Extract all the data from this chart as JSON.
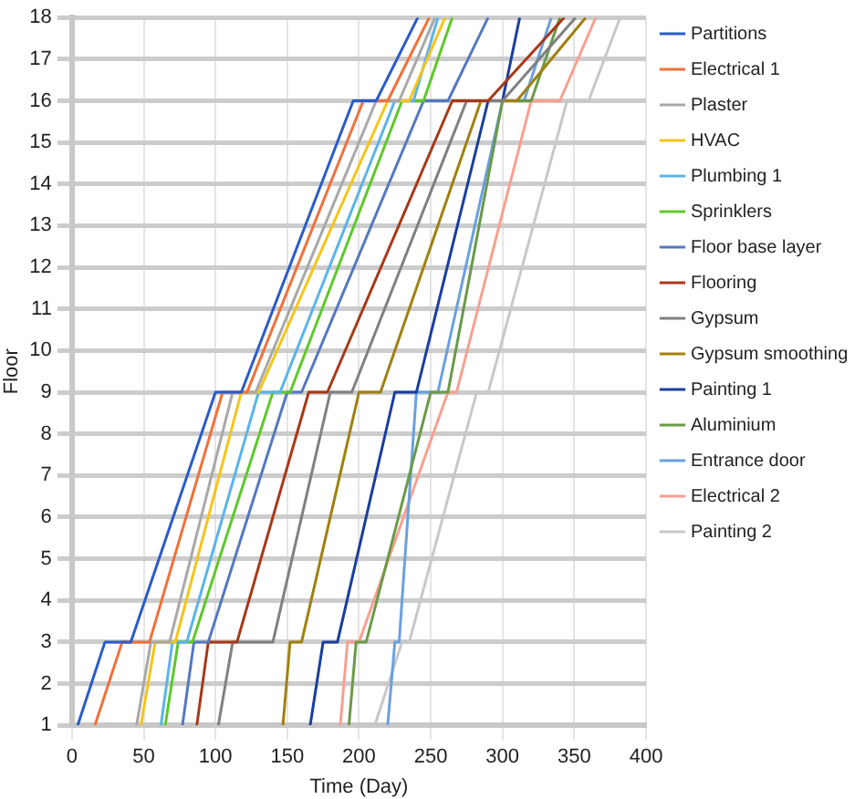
{
  "chart_data": {
    "type": "line",
    "xlabel": "Time (Day)",
    "ylabel": "Floor",
    "xlim": [
      0,
      400
    ],
    "xticks": [
      0,
      50,
      100,
      150,
      200,
      250,
      300,
      350,
      400
    ],
    "ylim": [
      1,
      18
    ],
    "yticks": [
      1,
      2,
      3,
      4,
      5,
      6,
      7,
      8,
      9,
      10,
      11,
      12,
      13,
      14,
      15,
      16,
      17,
      18
    ],
    "grid": true,
    "legend": "right",
    "marker": "none",
    "line_style": "solid",
    "series": [
      {
        "name": "Partitions",
        "color": "#2a5cc8",
        "x": [
          4,
          23,
          41,
          100,
          118,
          196,
          212,
          241
        ],
        "values": [
          1,
          3,
          3,
          9,
          9,
          16,
          16,
          18
        ]
      },
      {
        "name": "Electrical 1",
        "color": "#f0703a",
        "x": [
          16,
          35,
          54,
          105,
          122,
          203,
          220,
          249
        ],
        "values": [
          1,
          3,
          3,
          9,
          9,
          16,
          16,
          18
        ]
      },
      {
        "name": "Plaster",
        "color": "#a8a8a8",
        "x": [
          45,
          55,
          68,
          112,
          128,
          212,
          228,
          253
        ],
        "values": [
          1,
          3,
          3,
          9,
          9,
          16,
          16,
          18
        ]
      },
      {
        "name": "HVAC",
        "color": "#f5c518",
        "x": [
          48,
          58,
          72,
          118,
          130,
          220,
          235,
          260
        ],
        "values": [
          1,
          3,
          3,
          9,
          9,
          16,
          16,
          18
        ]
      },
      {
        "name": "Plumbing 1",
        "color": "#5bb4e8",
        "x": [
          62,
          70,
          80,
          130,
          145,
          225,
          238,
          255
        ],
        "values": [
          1,
          3,
          3,
          9,
          9,
          16,
          16,
          18
        ]
      },
      {
        "name": "Sprinklers",
        "color": "#5ec82a",
        "x": [
          65,
          74,
          84,
          140,
          152,
          230,
          245,
          265
        ],
        "values": [
          1,
          3,
          3,
          9,
          9,
          16,
          16,
          18
        ]
      },
      {
        "name": "Floor base layer",
        "color": "#5578c0",
        "x": [
          77,
          85,
          95,
          150,
          160,
          245,
          262,
          290
        ],
        "values": [
          1,
          3,
          3,
          9,
          9,
          16,
          16,
          18
        ]
      },
      {
        "name": "Flooring",
        "color": "#a83818",
        "x": [
          87,
          95,
          115,
          165,
          178,
          265,
          290,
          343
        ],
        "values": [
          1,
          3,
          3,
          9,
          9,
          16,
          16,
          18
        ]
      },
      {
        "name": "Gypsum",
        "color": "#808080",
        "x": [
          102,
          112,
          140,
          180,
          195,
          275,
          300,
          351
        ],
        "values": [
          1,
          3,
          3,
          9,
          9,
          16,
          16,
          18
        ]
      },
      {
        "name": "Gypsum smoothing",
        "color": "#a08010",
        "x": [
          147,
          152,
          160,
          200,
          215,
          285,
          310,
          358
        ],
        "values": [
          1,
          3,
          3,
          9,
          9,
          16,
          16,
          18
        ]
      },
      {
        "name": "Painting 1",
        "color": "#1a3e9e",
        "x": [
          166,
          175,
          185,
          225,
          240,
          290,
          300,
          312
        ],
        "values": [
          1,
          3,
          3,
          9,
          9,
          16,
          16,
          18
        ]
      },
      {
        "name": "Aluminium",
        "color": "#6a9a48",
        "x": [
          193,
          198,
          205,
          250,
          262,
          300,
          320,
          340
        ],
        "values": [
          1,
          3,
          3,
          9,
          9,
          16,
          16,
          18
        ]
      },
      {
        "name": "Entrance door",
        "color": "#6aa0e0",
        "x": [
          220,
          225,
          228,
          240,
          255,
          300,
          315,
          334
        ],
        "values": [
          1,
          3,
          3,
          9,
          9,
          16,
          16,
          18
        ]
      },
      {
        "name": "Electrical 2",
        "color": "#f8a090",
        "x": [
          187,
          192,
          200,
          262,
          268,
          320,
          340,
          365
        ],
        "values": [
          1,
          3,
          3,
          9,
          9,
          16,
          16,
          18
        ]
      },
      {
        "name": "Painting 2",
        "color": "#c8c8c8",
        "x": [
          211,
          230,
          235,
          282,
          290,
          345,
          360,
          382
        ],
        "values": [
          1,
          3,
          3,
          9,
          9,
          16,
          16,
          18
        ]
      }
    ]
  }
}
